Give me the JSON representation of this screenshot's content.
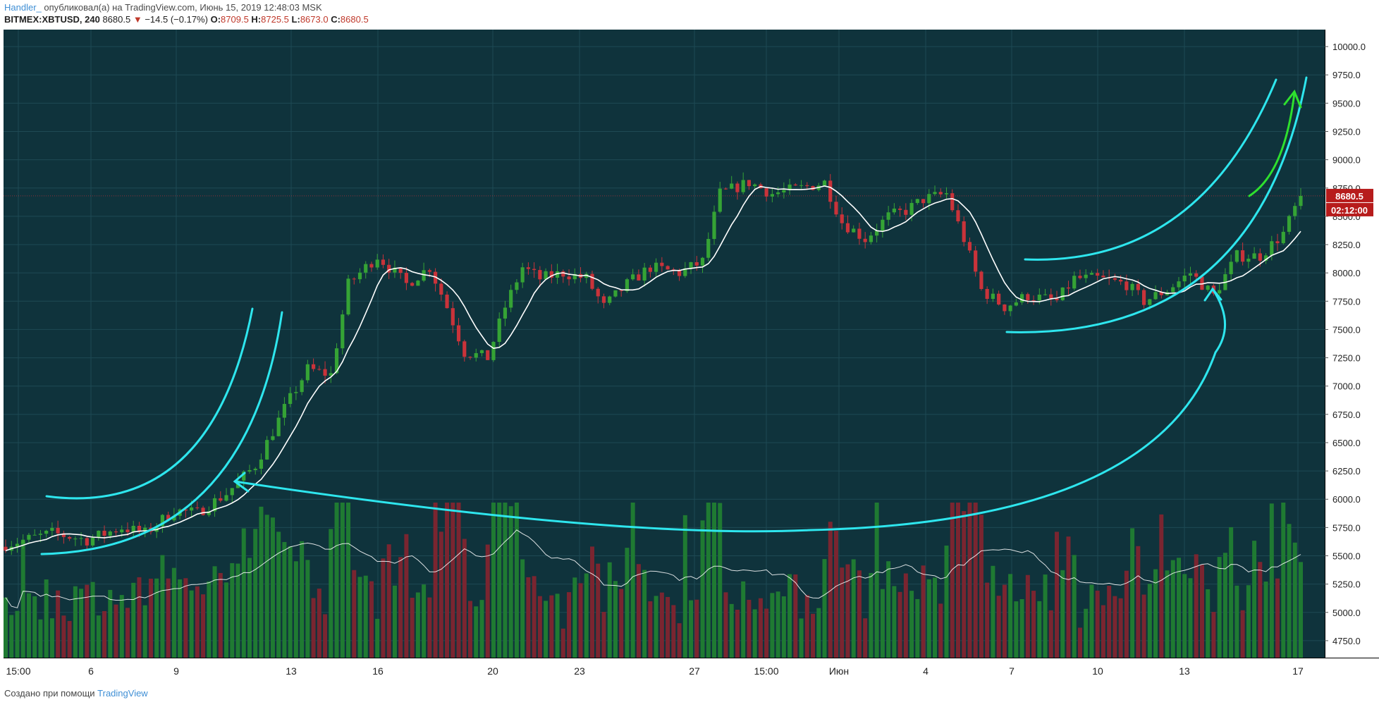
{
  "header": {
    "author": "Handler_",
    "published_text": "опубликовал(а) на TradingView.com, Июнь 15, 2019 12:48:03 MSK",
    "symbol": "BITMEX:XBTUSD, 240",
    "last": "8680.5",
    "change_arrow": "▼",
    "change": "−14.5 (−0.17%)",
    "open_label": "O:",
    "open": "8709.5",
    "high_label": "H:",
    "high": "8725.5",
    "low_label": "L:",
    "low": "8673.0",
    "close_label": "C:",
    "close": "8680.5"
  },
  "footer": {
    "text": "Создано при помощи",
    "brand": "TradingView"
  },
  "colors": {
    "background": "#0f333c",
    "grid": "#1e4a54",
    "up": "#35a335",
    "down": "#c9333a",
    "ma": "#ffffff",
    "annotation": "#2ee6ee",
    "annotation_green": "#2ee02e",
    "price_tag": "#b71c1c",
    "axis_text": "#d8e2e4"
  },
  "chart_data": {
    "type": "candlestick",
    "symbol": "BITMEX:XBTUSD",
    "interval": "240",
    "y_axis": {
      "ticks": [
        10000,
        9750,
        9500,
        9250,
        9000,
        8750,
        8500,
        8250,
        8000,
        7750,
        7500,
        7250,
        7000,
        6750,
        6500,
        6250,
        6000,
        5750,
        5500,
        5250,
        5000,
        4750
      ],
      "labels": [
        "10000.0",
        "9750.0",
        "9500.0",
        "9250.0",
        "9000.0",
        "8750.0",
        "8500.0",
        "8250.0",
        "8000.0",
        "7750.0",
        "7500.0",
        "7250.0",
        "7000.0",
        "6750.0",
        "6500.0",
        "6250.0",
        "6000.0",
        "5750.0",
        "5500.0",
        "5250.0",
        "5000.0",
        "4750.0"
      ],
      "range": [
        4600,
        10150
      ]
    },
    "x_axis": {
      "labels": [
        "15:00",
        "6",
        "9",
        "13",
        "16",
        "20",
        "23",
        "27",
        "15:00",
        "Июн",
        "4",
        "7",
        "10",
        "13",
        "17"
      ]
    },
    "price_key_points": [
      [
        0,
        5600
      ],
      [
        8,
        5700
      ],
      [
        14,
        5640
      ],
      [
        20,
        5750
      ],
      [
        24,
        5700
      ],
      [
        29,
        5900
      ],
      [
        33,
        5880
      ],
      [
        38,
        6050
      ],
      [
        43,
        6300
      ],
      [
        48,
        6800
      ],
      [
        52,
        7150
      ],
      [
        56,
        7100
      ],
      [
        59,
        7900
      ],
      [
        64,
        8150
      ],
      [
        69,
        7900
      ],
      [
        73,
        8050
      ],
      [
        76,
        7700
      ],
      [
        79,
        7300
      ],
      [
        83,
        7250
      ],
      [
        86,
        7700
      ],
      [
        89,
        8050
      ],
      [
        92,
        7950
      ],
      [
        96,
        8000
      ],
      [
        100,
        7950
      ],
      [
        103,
        7700
      ],
      [
        107,
        7900
      ],
      [
        111,
        8050
      ],
      [
        116,
        8000
      ],
      [
        120,
        8100
      ],
      [
        123,
        8700
      ],
      [
        128,
        8800
      ],
      [
        132,
        8700
      ],
      [
        137,
        8750
      ],
      [
        141,
        8800
      ],
      [
        144,
        8450
      ],
      [
        148,
        8300
      ],
      [
        152,
        8500
      ],
      [
        155,
        8550
      ],
      [
        158,
        8650
      ],
      [
        162,
        8700
      ],
      [
        165,
        8300
      ],
      [
        168,
        7850
      ],
      [
        172,
        7700
      ],
      [
        176,
        7800
      ],
      [
        181,
        7750
      ],
      [
        184,
        7950
      ],
      [
        188,
        7950
      ],
      [
        193,
        7900
      ],
      [
        196,
        7750
      ],
      [
        200,
        7850
      ],
      [
        204,
        8000
      ],
      [
        208,
        7800
      ],
      [
        212,
        8150
      ],
      [
        216,
        8150
      ],
      [
        220,
        8350
      ],
      [
        223,
        8680
      ]
    ],
    "volume_range": [
      0,
      100
    ],
    "current_price": 8680.5,
    "current_price_label": "8680.5",
    "countdown_label": "02:12:00"
  }
}
